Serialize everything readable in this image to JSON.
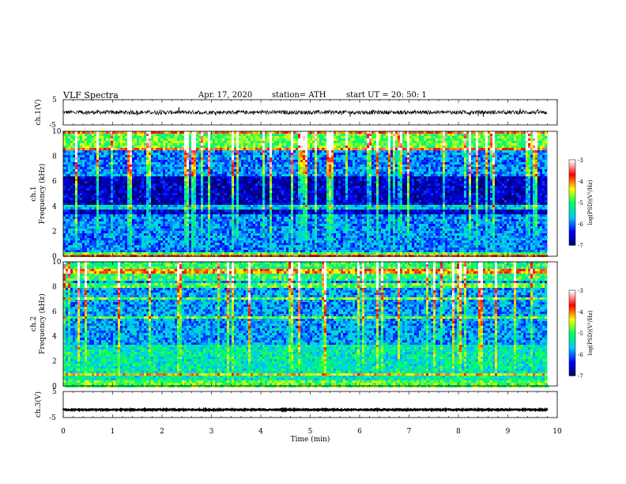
{
  "header": {
    "title": "VLF  Spectra",
    "date": "Apr. 17, 2020",
    "station": "station= ATH",
    "start": "start  UT  =   20: 50: 1"
  },
  "chart_data": [
    {
      "type": "line",
      "ylabel": "ch.1(V)",
      "ylim": [
        -5,
        5
      ],
      "yticks": [
        "5",
        "-5"
      ],
      "x_range": [
        0,
        9.8
      ],
      "baseline": 0,
      "noise_amplitude": 0.8
    },
    {
      "type": "heatmap",
      "ylabel_channel": "ch.1",
      "ylabel": "Frequency (kHz)",
      "ylim": [
        0,
        10
      ],
      "yticks": [
        "0",
        "2",
        "4",
        "6",
        "8",
        "10"
      ],
      "x_range": [
        0,
        9.8
      ],
      "colorbar": {
        "label": "log(PSD)(V²/Hz)",
        "range": [
          -7,
          -3
        ],
        "ticks": [
          "-3",
          "-4",
          "-5",
          "-6",
          "-7"
        ]
      }
    },
    {
      "type": "heatmap",
      "ylabel_channel": "ch.2",
      "ylabel": "Frequency (kHz)",
      "ylim": [
        0,
        10
      ],
      "yticks": [
        "0",
        "2",
        "4",
        "6",
        "8",
        "10"
      ],
      "x_range": [
        0,
        9.8
      ],
      "colorbar": {
        "label": "log(PSD)(V²/Hz)",
        "range": [
          -7,
          -3
        ],
        "ticks": [
          "-3",
          "-4",
          "-5",
          "-6",
          "-7"
        ]
      }
    },
    {
      "type": "line",
      "ylabel": "ch.3(V)",
      "ylim": [
        -5,
        5
      ],
      "yticks": [
        "5",
        "-5"
      ],
      "x_range": [
        0,
        9.8
      ],
      "baseline": -2,
      "noise_amplitude": 0.2
    }
  ],
  "xaxis": {
    "label": "Time  (min)",
    "range": [
      0,
      10
    ],
    "ticks": [
      "0",
      "1",
      "2",
      "3",
      "4",
      "5",
      "6",
      "7",
      "8",
      "9",
      "10"
    ]
  },
  "colors": {
    "colormap": [
      "#000060",
      "#0000ff",
      "#00c8ff",
      "#00ff60",
      "#ffff00",
      "#ff0000",
      "#ffffff"
    ]
  }
}
